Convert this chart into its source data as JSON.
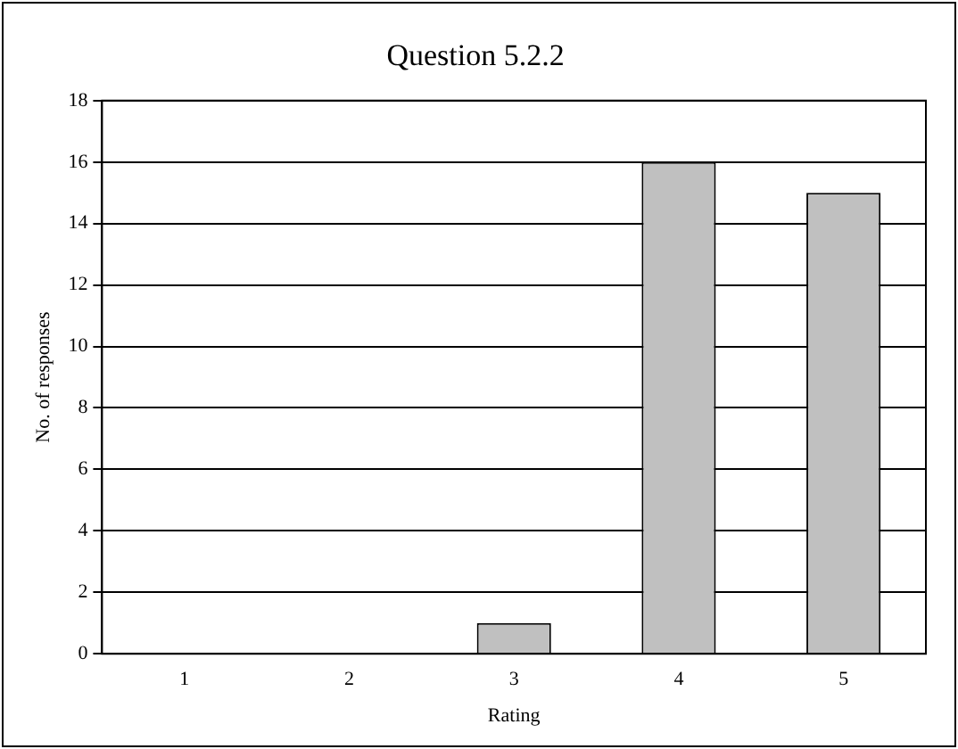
{
  "chart_data": {
    "type": "bar",
    "title": "Question 5.2.2",
    "xlabel": "Rating",
    "ylabel": "No. of responses",
    "categories": [
      "1",
      "2",
      "3",
      "4",
      "5"
    ],
    "values": [
      0,
      0,
      1,
      16,
      15
    ],
    "color": "#c0c0c0",
    "ylim": [
      0,
      18
    ],
    "yticks": [
      0,
      2,
      4,
      6,
      8,
      10,
      12,
      14,
      16,
      18
    ],
    "grid": "y",
    "legend": false
  }
}
